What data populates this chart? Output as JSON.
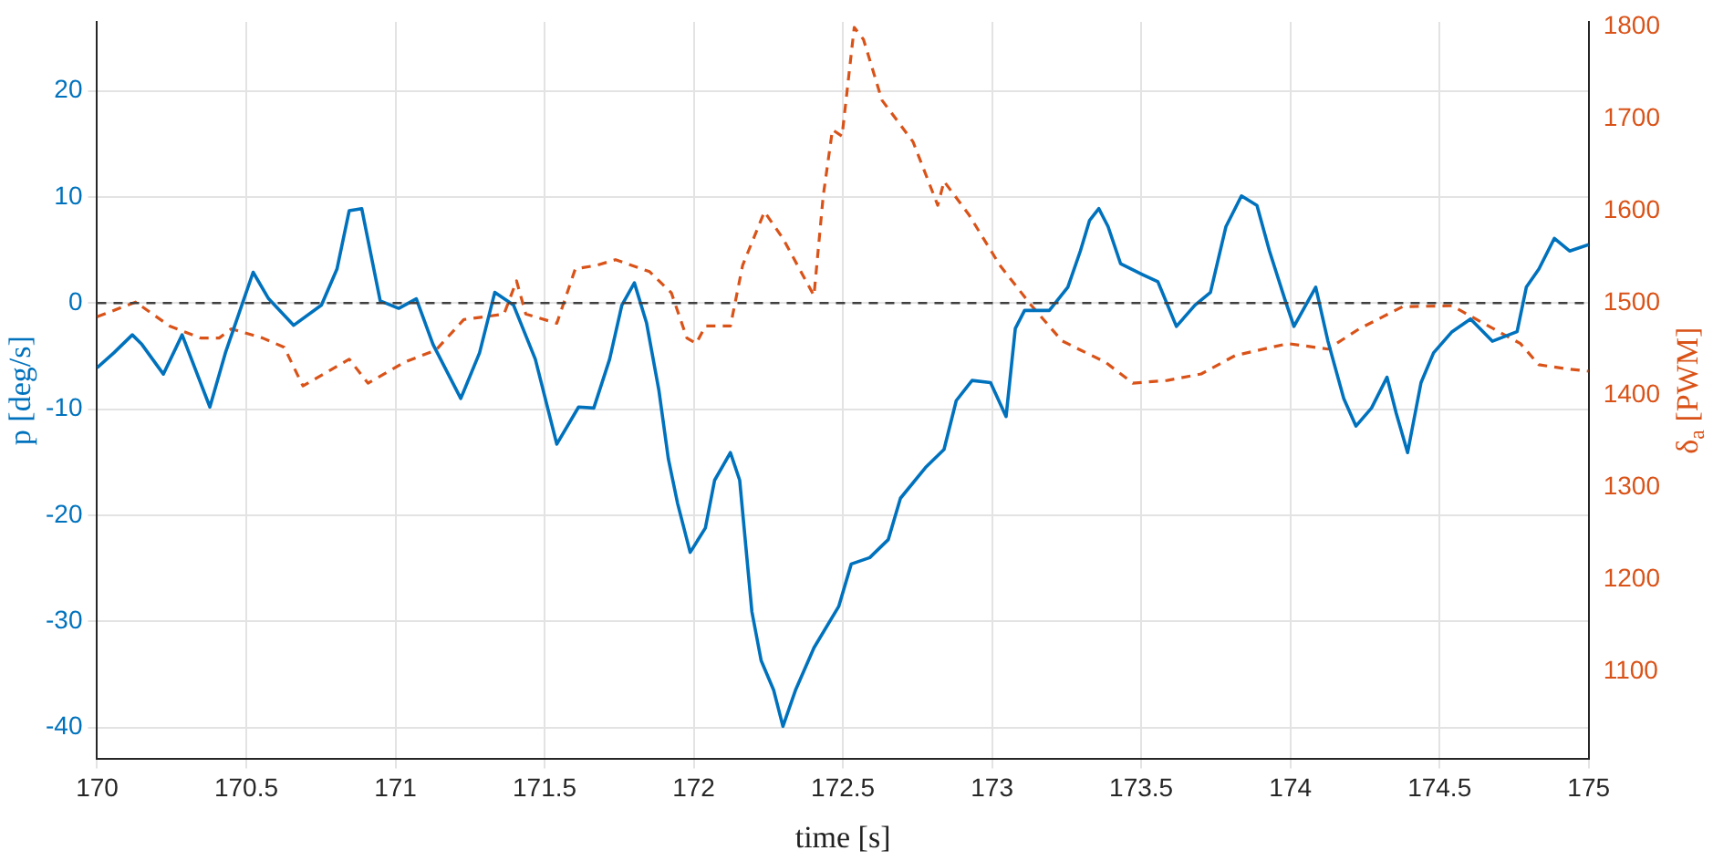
{
  "chart_data": {
    "type": "line",
    "xlabel": "time [s]",
    "ylabel": "p [deg/s]",
    "y2label": "δ$_{a}$ [PWM]",
    "xlim": [
      170,
      175
    ],
    "xticks": [
      170,
      170.5,
      171,
      171.5,
      172,
      172.5,
      173,
      173.5,
      174,
      174.5,
      175
    ],
    "ylim": [
      -43,
      26.5
    ],
    "yticks": [
      -40,
      -30,
      -20,
      -10,
      0,
      10,
      20
    ],
    "y2lim": [
      1005,
      1805
    ],
    "y2ticks": [
      1100,
      1200,
      1300,
      1400,
      1500,
      1600,
      1700,
      1800
    ],
    "grid": true,
    "legend": false,
    "marker": "none",
    "ref_lines": [
      {
        "axis": "y",
        "value": 0,
        "color": "#404040",
        "line_style": "dashed"
      }
    ],
    "series": [
      {
        "color": "#0072bd",
        "line_style": "solid",
        "x": [
          170,
          170.056,
          170.118,
          170.15,
          170.222,
          170.285,
          170.378,
          170.43,
          170.523,
          170.575,
          170.659,
          170.752,
          170.804,
          170.845,
          170.887,
          170.949,
          171.011,
          171.07,
          171.126,
          171.219,
          171.282,
          171.333,
          171.396,
          171.469,
          171.541,
          171.614,
          171.665,
          171.718,
          171.759,
          171.801,
          171.842,
          171.883,
          171.915,
          171.946,
          171.988,
          172.039,
          172.07,
          172.123,
          172.154,
          172.195,
          172.226,
          172.268,
          172.299,
          172.341,
          172.403,
          172.486,
          172.528,
          172.59,
          172.652,
          172.693,
          172.777,
          172.839,
          172.88,
          172.933,
          172.995,
          173.047,
          173.078,
          173.109,
          173.192,
          173.254,
          173.296,
          173.327,
          173.358,
          173.389,
          173.431,
          173.503,
          173.556,
          173.618,
          173.68,
          173.732,
          173.784,
          173.836,
          173.888,
          173.93,
          173.981,
          174.012,
          174.085,
          174.126,
          174.179,
          174.22,
          174.272,
          174.324,
          174.355,
          174.393,
          174.438,
          174.48,
          174.542,
          174.604,
          174.677,
          174.76,
          174.791,
          174.833,
          174.885,
          174.936,
          175
        ],
        "values": [
          -6.1,
          -4.7,
          -3,
          -3.9,
          -6.7,
          -3,
          -9.8,
          -4.7,
          2.9,
          0.4,
          -2.1,
          -0.2,
          3.2,
          8.7,
          8.9,
          0.2,
          -0.5,
          0.4,
          -3.9,
          -9,
          -4.7,
          1,
          -0.2,
          -5.3,
          -13.3,
          -9.8,
          -9.9,
          -5.3,
          -0.2,
          1.9,
          -1.9,
          -8.2,
          -14.7,
          -18.9,
          -23.5,
          -21.2,
          -16.7,
          -14.1,
          -16.7,
          -29.1,
          -33.7,
          -36.5,
          -39.9,
          -36.5,
          -32.5,
          -28.6,
          -24.6,
          -24,
          -22.3,
          -18.4,
          -15.5,
          -13.8,
          -9.2,
          -7.3,
          -7.5,
          -10.7,
          -2.4,
          -0.7,
          -0.7,
          1.5,
          4.9,
          7.8,
          8.9,
          7.2,
          3.7,
          2.7,
          2,
          -2.2,
          -0.2,
          1,
          7.2,
          10.1,
          9.2,
          4.9,
          0.4,
          -2.2,
          1.5,
          -3.6,
          -9,
          -11.6,
          -9.9,
          -7,
          -10.4,
          -14.1,
          -7.5,
          -4.7,
          -2.7,
          -1.5,
          -3.6,
          -2.7,
          1.5,
          3.2,
          6.1,
          4.9,
          5.5
        ]
      },
      {
        "color": "#d95319",
        "axis": "y2",
        "line_style": "dashed",
        "x": [
          170,
          170.129,
          170.243,
          170.347,
          170.409,
          170.45,
          170.555,
          170.627,
          170.69,
          170.845,
          170.908,
          171.032,
          171.136,
          171.229,
          171.364,
          171.406,
          171.437,
          171.541,
          171.603,
          171.676,
          171.738,
          171.852,
          171.925,
          171.977,
          172.008,
          172.039,
          172.123,
          172.164,
          172.237,
          172.299,
          172.403,
          172.434,
          172.465,
          172.497,
          172.538,
          172.569,
          172.631,
          172.735,
          172.818,
          172.839,
          172.922,
          173.026,
          173.13,
          173.234,
          173.296,
          173.379,
          173.472,
          173.587,
          173.701,
          173.815,
          173.992,
          174.126,
          174.231,
          174.376,
          174.542,
          174.625,
          174.771,
          174.833,
          174.916,
          175
        ],
        "values": [
          1485,
          1501,
          1475,
          1462,
          1462,
          1472,
          1462,
          1452,
          1410,
          1439,
          1413,
          1436,
          1449,
          1482,
          1488,
          1524,
          1488,
          1478,
          1537,
          1541,
          1547,
          1534,
          1511,
          1462,
          1456,
          1475,
          1475,
          1541,
          1599,
          1570,
          1508,
          1616,
          1688,
          1681,
          1799,
          1786,
          1720,
          1675,
          1606,
          1632,
          1596,
          1541,
          1498,
          1459,
          1449,
          1436,
          1413,
          1416,
          1423,
          1443,
          1456,
          1450,
          1472,
          1496,
          1497,
          1482,
          1456,
          1433,
          1429,
          1426
        ]
      }
    ]
  }
}
